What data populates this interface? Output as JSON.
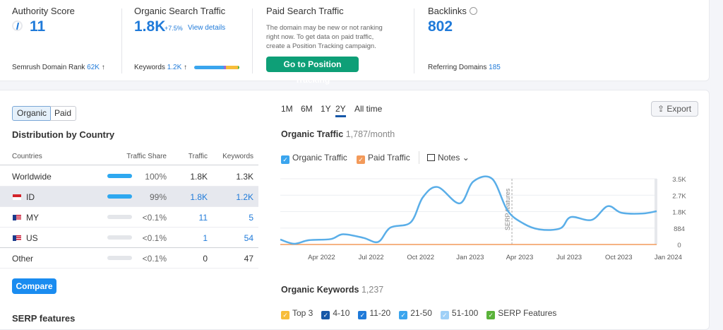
{
  "summary": {
    "authority": {
      "title": "Authority Score",
      "value": "11",
      "footer_label": "Semrush Domain Rank",
      "footer_value": "62K",
      "footer_arrow": "↑"
    },
    "organic": {
      "title": "Organic Search Traffic",
      "value": "1.8K",
      "change": "+7.5%",
      "link": "View details",
      "footer_label": "Keywords",
      "footer_value": "1.2K",
      "footer_arrow": "↑"
    },
    "paid": {
      "title": "Paid Search Traffic",
      "text": "The domain may be new or not ranking right now. To get data on paid traffic, create a Position Tracking campaign.",
      "button": "Go to Position Tracking"
    },
    "backlinks": {
      "title": "Backlinks",
      "value": "802",
      "footer_label": "Referring Domains",
      "footer_value": "185"
    }
  },
  "left": {
    "toggle": [
      "Organic",
      "Paid"
    ],
    "title": "Distribution by Country",
    "columns": [
      "Countries",
      "Traffic Share",
      "Traffic",
      "Keywords"
    ],
    "rows": [
      {
        "country": "Worldwide",
        "share": "100%",
        "share_pct": 100,
        "traffic": "1.8K",
        "keywords": "1.3K"
      },
      {
        "country": "ID",
        "share": "99%",
        "share_pct": 99,
        "traffic": "1.8K",
        "keywords": "1.2K"
      },
      {
        "country": "MY",
        "share": "<0.1%",
        "share_pct": 0.1,
        "traffic": "11",
        "keywords": "5"
      },
      {
        "country": "US",
        "share": "<0.1%",
        "share_pct": 0.1,
        "traffic": "1",
        "keywords": "54"
      },
      {
        "country": "Other",
        "share": "<0.1%",
        "share_pct": 0.1,
        "traffic": "0",
        "keywords": "47"
      }
    ],
    "compare": "Compare",
    "serp_title": "SERP features"
  },
  "range_tabs": [
    "1M",
    "6M",
    "1Y",
    "2Y",
    "All time"
  ],
  "range_selected": "2Y",
  "export": "Export",
  "traffic_title": "Organic Traffic",
  "traffic_value": "1,787/month",
  "legend": {
    "organic": "Organic Traffic",
    "paid": "Paid Traffic",
    "notes": "Notes"
  },
  "keywords_title": "Organic Keywords",
  "keywords_value": "1,237",
  "kw_legend": [
    {
      "label": "Top 3",
      "color": "#f7bd3a"
    },
    {
      "label": "4-10",
      "color": "#1557a8"
    },
    {
      "label": "11-20",
      "color": "#1f7ad9"
    },
    {
      "label": "21-50",
      "color": "#3aa5ee"
    },
    {
      "label": "51-100",
      "color": "#9fd0f7"
    },
    {
      "label": "SERP Features",
      "color": "#5ab33a"
    }
  ],
  "colors": {
    "accent": "#1f7ad9",
    "organic_line": "#5aaee8",
    "paid_line": "#f39a5a",
    "green_button": "#0e9f77"
  },
  "chart_data": {
    "type": "line",
    "title": "Organic Traffic",
    "x_ticks": [
      "Apr 2022",
      "Jul 2022",
      "Oct 2022",
      "Jan 2023",
      "Apr 2023",
      "Jul 2023",
      "Oct 2023",
      "Jan 2024"
    ],
    "y_ticks": [
      "0",
      "884",
      "1.8K",
      "2.7K",
      "3.5K"
    ],
    "ylim": [
      0,
      3500
    ],
    "grid": true,
    "annotation": {
      "label": "SERP features",
      "date": "2023-03-17"
    },
    "series": [
      {
        "name": "Organic Traffic",
        "points": [
          [
            "2022-01-16",
            266
          ],
          [
            "2022-02-11",
            40
          ],
          [
            "2022-03-08",
            230
          ],
          [
            "2022-04-18",
            290
          ],
          [
            "2022-05-10",
            545
          ],
          [
            "2022-06-17",
            355
          ],
          [
            "2022-07-14",
            140
          ],
          [
            "2022-08-06",
            900
          ],
          [
            "2022-09-13",
            1180
          ],
          [
            "2022-10-05",
            2510
          ],
          [
            "2022-11-02",
            3060
          ],
          [
            "2022-12-12",
            2190
          ],
          [
            "2023-01-07",
            3360
          ],
          [
            "2023-02-11",
            3500
          ],
          [
            "2023-03-09",
            1810
          ],
          [
            "2023-04-08",
            1115
          ],
          [
            "2023-05-08",
            800
          ],
          [
            "2023-06-15",
            860
          ],
          [
            "2023-07-04",
            1460
          ],
          [
            "2023-08-12",
            1310
          ],
          [
            "2023-09-11",
            2040
          ],
          [
            "2023-10-06",
            1690
          ],
          [
            "2023-11-15",
            1650
          ],
          [
            "2023-12-10",
            1775
          ]
        ]
      },
      {
        "name": "Paid Traffic",
        "points": [
          [
            "2022-01-16",
            0
          ],
          [
            "2023-12-10",
            0
          ]
        ]
      }
    ]
  }
}
